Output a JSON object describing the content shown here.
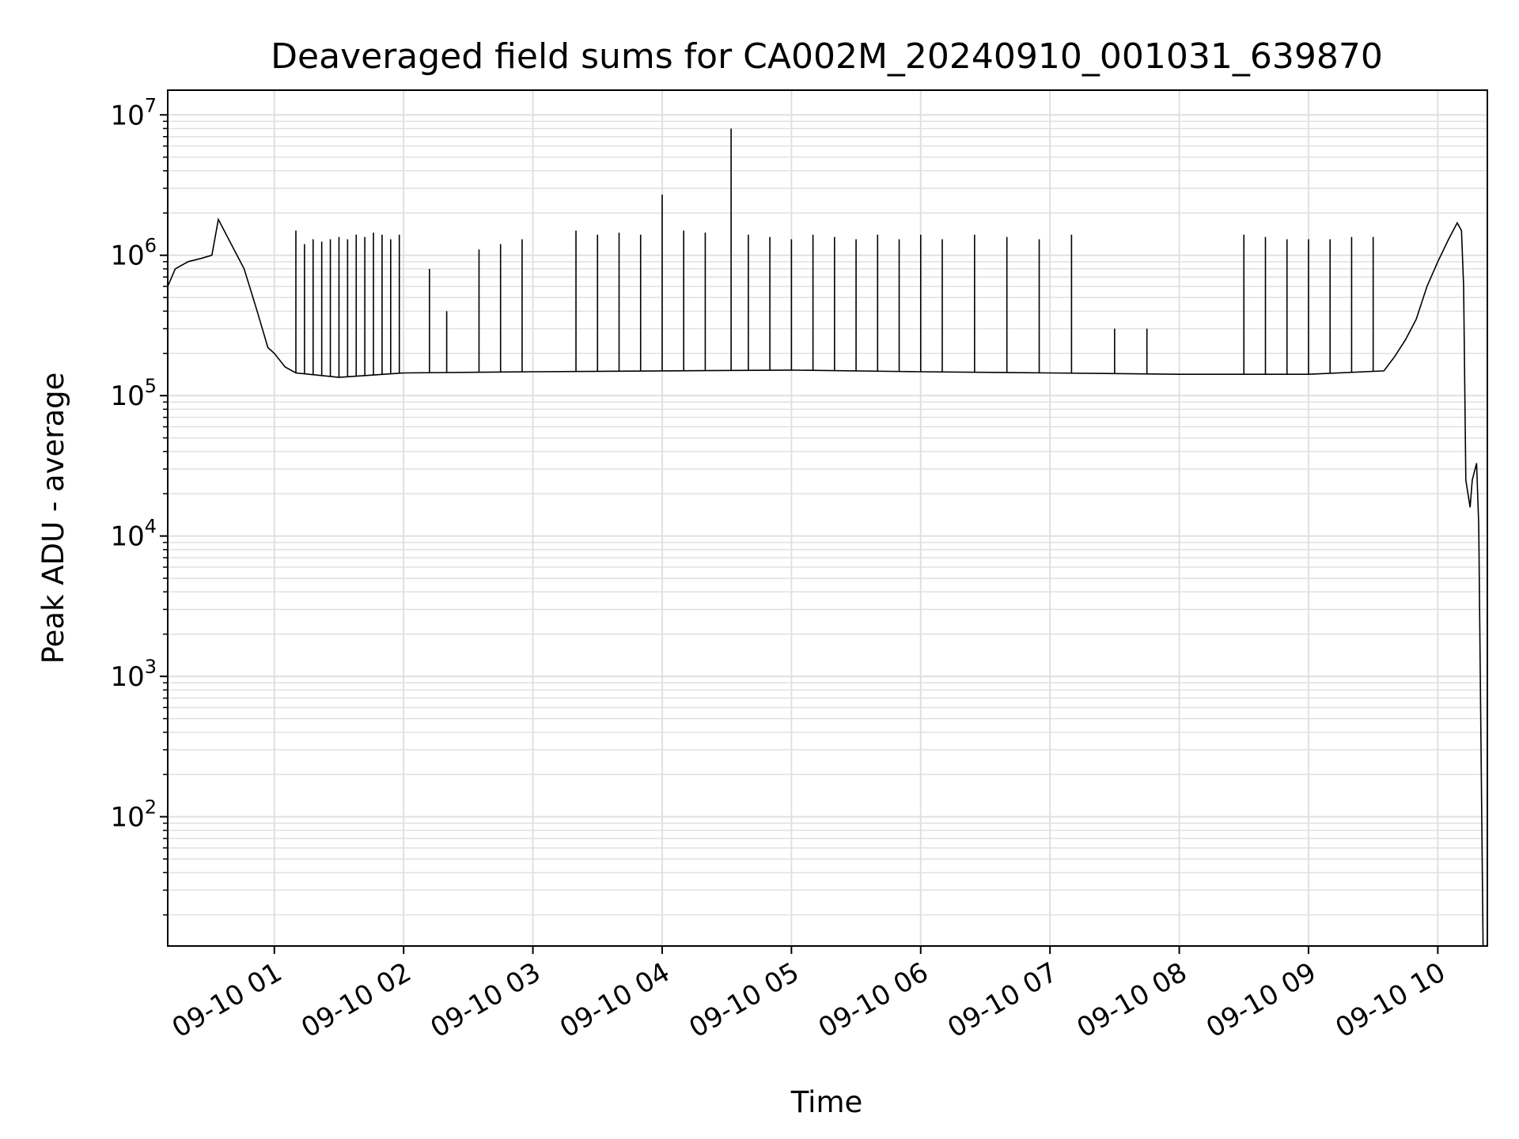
{
  "chart_data": {
    "type": "line",
    "title": "Deaveraged field sums for CA002M_20240910_001031_639870",
    "xlabel": "Time",
    "ylabel": "Peak ADU - average",
    "xscale": "time",
    "yscale": "log",
    "x_range": [
      "2024-09-10 00:10:31",
      "2024-09-10 10:23:00"
    ],
    "ylim": [
      12,
      15000000
    ],
    "x_ticks": [
      {
        "time": "2024-09-10 01:00",
        "label": "09-10 01"
      },
      {
        "time": "2024-09-10 02:00",
        "label": "09-10 02"
      },
      {
        "time": "2024-09-10 03:00",
        "label": "09-10 03"
      },
      {
        "time": "2024-09-10 04:00",
        "label": "09-10 04"
      },
      {
        "time": "2024-09-10 05:00",
        "label": "09-10 05"
      },
      {
        "time": "2024-09-10 06:00",
        "label": "09-10 06"
      },
      {
        "time": "2024-09-10 07:00",
        "label": "09-10 07"
      },
      {
        "time": "2024-09-10 08:00",
        "label": "09-10 08"
      },
      {
        "time": "2024-09-10 09:00",
        "label": "09-10 09"
      },
      {
        "time": "2024-09-10 10:00",
        "label": "09-10 10"
      }
    ],
    "y_ticks": [
      {
        "value": 100,
        "base": "10",
        "exp": "2"
      },
      {
        "value": 1000,
        "base": "10",
        "exp": "3"
      },
      {
        "value": 10000,
        "base": "10",
        "exp": "4"
      },
      {
        "value": 100000,
        "base": "10",
        "exp": "5"
      },
      {
        "value": 1000000,
        "base": "10",
        "exp": "6"
      },
      {
        "value": 10000000,
        "base": "10",
        "exp": "7"
      }
    ],
    "grid": true,
    "grid_color": "#e0e0e0",
    "line_color": "#000000",
    "series": [
      {
        "points": [
          [
            "2024-09-10 00:10:31",
            600000
          ],
          [
            "2024-09-10 00:14",
            800000
          ],
          [
            "2024-09-10 00:20",
            900000
          ],
          [
            "2024-09-10 00:26",
            950000
          ],
          [
            "2024-09-10 00:31",
            1000000
          ],
          [
            "2024-09-10 00:34",
            1800000
          ],
          [
            "2024-09-10 00:40",
            1200000
          ],
          [
            "2024-09-10 00:46",
            800000
          ],
          [
            "2024-09-10 00:52",
            400000
          ],
          [
            "2024-09-10 00:57",
            220000
          ],
          [
            "2024-09-10 01:00",
            200000
          ],
          [
            "2024-09-10 01:05",
            160000
          ],
          [
            "2024-09-10 01:10",
            145000
          ],
          [
            "2024-09-10 01:30",
            135000
          ],
          [
            "2024-09-10 02:00",
            145000
          ],
          [
            "2024-09-10 03:00",
            148000
          ],
          [
            "2024-09-10 04:00",
            150000
          ],
          [
            "2024-09-10 05:00",
            152000
          ],
          [
            "2024-09-10 06:00",
            148000
          ],
          [
            "2024-09-10 07:00",
            145000
          ],
          [
            "2024-09-10 08:00",
            142000
          ],
          [
            "2024-09-10 09:00",
            142000
          ],
          [
            "2024-09-10 09:35",
            150000
          ],
          [
            "2024-09-10 09:40",
            190000
          ],
          [
            "2024-09-10 09:45",
            250000
          ],
          [
            "2024-09-10 09:50",
            350000
          ],
          [
            "2024-09-10 09:55",
            600000
          ],
          [
            "2024-09-10 10:00",
            900000
          ],
          [
            "2024-09-10 10:05",
            1300000
          ],
          [
            "2024-09-10 10:09",
            1700000
          ],
          [
            "2024-09-10 10:11",
            1500000
          ],
          [
            "2024-09-10 10:12",
            600000
          ],
          [
            "2024-09-10 10:13",
            25000
          ],
          [
            "2024-09-10 10:15",
            16000
          ],
          [
            "2024-09-10 10:16",
            25000
          ],
          [
            "2024-09-10 10:18",
            33000
          ],
          [
            "2024-09-10 10:19",
            12000
          ],
          [
            "2024-09-10 10:21",
            12
          ]
        ]
      }
    ],
    "spikes": [
      [
        "2024-09-10 01:10",
        1500000
      ],
      [
        "2024-09-10 01:14",
        1200000
      ],
      [
        "2024-09-10 01:18",
        1300000
      ],
      [
        "2024-09-10 01:22",
        1250000
      ],
      [
        "2024-09-10 01:26",
        1300000
      ],
      [
        "2024-09-10 01:30",
        1350000
      ],
      [
        "2024-09-10 01:34",
        1300000
      ],
      [
        "2024-09-10 01:38",
        1400000
      ],
      [
        "2024-09-10 01:42",
        1350000
      ],
      [
        "2024-09-10 01:46",
        1450000
      ],
      [
        "2024-09-10 01:50",
        1400000
      ],
      [
        "2024-09-10 01:54",
        1300000
      ],
      [
        "2024-09-10 01:58",
        1400000
      ],
      [
        "2024-09-10 02:12",
        800000
      ],
      [
        "2024-09-10 02:20",
        400000
      ],
      [
        "2024-09-10 02:35",
        1100000
      ],
      [
        "2024-09-10 02:45",
        1200000
      ],
      [
        "2024-09-10 02:55",
        1300000
      ],
      [
        "2024-09-10 03:20",
        1500000
      ],
      [
        "2024-09-10 03:30",
        1400000
      ],
      [
        "2024-09-10 03:40",
        1450000
      ],
      [
        "2024-09-10 03:50",
        1400000
      ],
      [
        "2024-09-10 04:00",
        2700000
      ],
      [
        "2024-09-10 04:10",
        1500000
      ],
      [
        "2024-09-10 04:20",
        1450000
      ],
      [
        "2024-09-10 04:32",
        8000000
      ],
      [
        "2024-09-10 04:40",
        1400000
      ],
      [
        "2024-09-10 04:50",
        1350000
      ],
      [
        "2024-09-10 05:00",
        1300000
      ],
      [
        "2024-09-10 05:10",
        1400000
      ],
      [
        "2024-09-10 05:20",
        1350000
      ],
      [
        "2024-09-10 05:30",
        1300000
      ],
      [
        "2024-09-10 05:40",
        1400000
      ],
      [
        "2024-09-10 05:50",
        1300000
      ],
      [
        "2024-09-10 06:00",
        1400000
      ],
      [
        "2024-09-10 06:10",
        1300000
      ],
      [
        "2024-09-10 06:25",
        1400000
      ],
      [
        "2024-09-10 06:40",
        1350000
      ],
      [
        "2024-09-10 06:55",
        1300000
      ],
      [
        "2024-09-10 07:10",
        1400000
      ],
      [
        "2024-09-10 07:30",
        300000
      ],
      [
        "2024-09-10 07:45",
        300000
      ],
      [
        "2024-09-10 08:30",
        1400000
      ],
      [
        "2024-09-10 08:40",
        1350000
      ],
      [
        "2024-09-10 08:50",
        1300000
      ],
      [
        "2024-09-10 09:00",
        1300000
      ],
      [
        "2024-09-10 09:10",
        1300000
      ],
      [
        "2024-09-10 09:20",
        1350000
      ],
      [
        "2024-09-10 09:30",
        1350000
      ]
    ]
  }
}
